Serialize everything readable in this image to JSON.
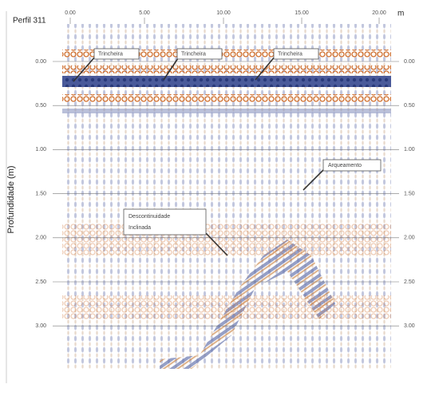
{
  "header": {
    "title": "Perfil 311",
    "x_unit": "m"
  },
  "x_ticks": [
    "0.00",
    "5.00",
    "10.00",
    "15.00",
    "20.00"
  ],
  "y_label": "Profundidade (m)",
  "y_ticks_left": [
    "0.00",
    "0.50",
    "1.00",
    "1.50",
    "2.00",
    "2.50",
    "3.00"
  ],
  "y_ticks_right": [
    "0.00",
    "0.50",
    "1.00",
    "1.50",
    "2.00",
    "2.50",
    "3.00"
  ],
  "annotations": {
    "trenches": [
      "Trincheira",
      "Trincheira",
      "Trincheira"
    ],
    "arch": "Arqueamento",
    "discontinuity": [
      "Descontinuidade",
      "Inclinada"
    ]
  }
}
